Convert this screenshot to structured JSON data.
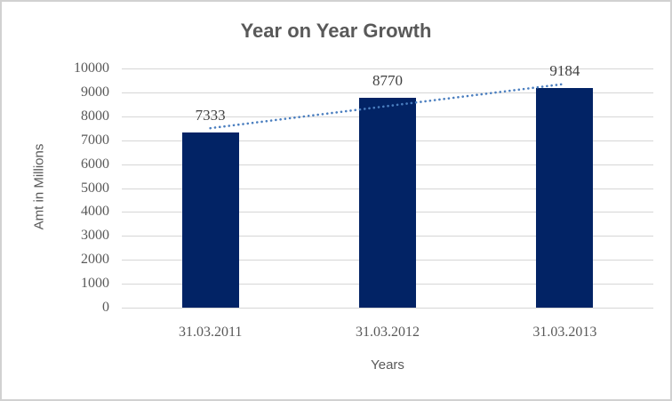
{
  "chart_data": {
    "type": "bar",
    "title": "Year on Year Growth",
    "categories": [
      "31.03.2011",
      "31.03.2012",
      "31.03.2013"
    ],
    "values": [
      7333,
      8770,
      9184
    ],
    "data_labels": [
      "7333",
      "8770",
      "9184"
    ],
    "xlabel": "Years",
    "ylabel": "Amt in Millions",
    "ylim": [
      0,
      10000
    ],
    "ytick_step": 1000,
    "yticks": [
      0,
      1000,
      2000,
      3000,
      4000,
      5000,
      6000,
      7000,
      8000,
      9000,
      10000
    ],
    "grid": "horizontal",
    "legend_position": "none",
    "trendline": {
      "type": "linear",
      "style": "dotted",
      "color": "#4a7ebf"
    },
    "colors": {
      "bar": "#022365",
      "gridline": "#d6d6d6",
      "chart_border": "#d1d1d1",
      "title_text": "#595959",
      "axis_text": "#595959",
      "data_label_text": "#404040",
      "background": "#ffffff"
    }
  }
}
